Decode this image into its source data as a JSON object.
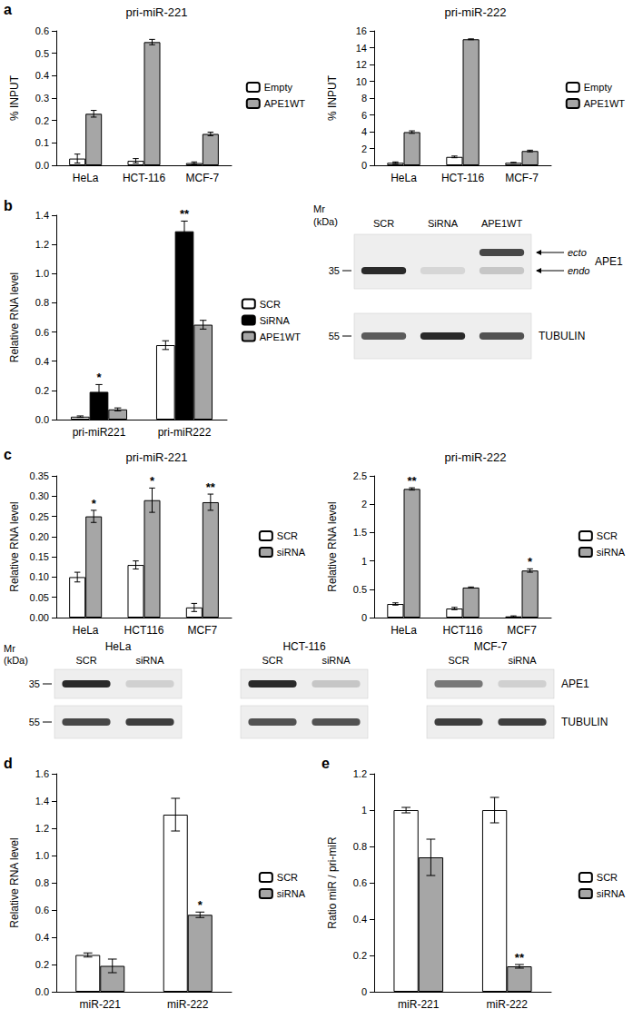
{
  "panel_labels": [
    "a",
    "b",
    "c",
    "d",
    "e"
  ],
  "chart_data": [
    {
      "type": "bar",
      "title": "pri-miR-221",
      "ylabel": "% INPUT",
      "categories": [
        "HeLa",
        "HCT-116",
        "MCF-7"
      ],
      "series": [
        {
          "name": "Empty",
          "color": "#ffffff",
          "values": [
            0.03,
            0.02,
            0.01
          ],
          "errors": [
            0.02,
            0.01,
            0.005
          ]
        },
        {
          "name": "APE1WT",
          "color": "#a6a6a6",
          "values": [
            0.23,
            0.55,
            0.14
          ],
          "errors": [
            0.015,
            0.012,
            0.008
          ]
        }
      ],
      "ylim": [
        0,
        0.6
      ],
      "yticks": [
        {
          "value": 0,
          "label": "0.0"
        },
        0.1,
        0.2,
        0.3,
        0.4,
        0.5,
        0.6
      ],
      "grid": false,
      "legend": "right"
    },
    {
      "type": "bar",
      "title": "pri-miR-222",
      "ylabel": "% INPUT",
      "categories": [
        "HeLa",
        "HCT-116",
        "MCF-7"
      ],
      "series": [
        {
          "name": "Empty",
          "color": "#ffffff",
          "values": [
            0.3,
            1.0,
            0.3
          ],
          "errors": [
            0.1,
            0.1,
            0.05
          ]
        },
        {
          "name": "APE1WT",
          "color": "#a6a6a6",
          "values": [
            3.95,
            15.0,
            1.7
          ],
          "errors": [
            0.15,
            0.05,
            0.1
          ]
        }
      ],
      "ylim": [
        0,
        16
      ],
      "yticks": [
        0,
        2,
        4,
        6,
        8,
        10,
        12,
        14,
        16
      ],
      "grid": false,
      "legend": "right"
    },
    {
      "type": "bar",
      "ylabel": "Relative RNA level",
      "categories": [
        "pri-miR221",
        "pri-miR222"
      ],
      "series": [
        {
          "name": "SCR",
          "color": "#ffffff",
          "values": [
            0.02,
            0.51
          ],
          "errors": [
            0.005,
            0.03
          ],
          "significance": [
            null,
            null
          ]
        },
        {
          "name": "SiRNA",
          "color": "#000000",
          "values": [
            0.19,
            1.29
          ],
          "errors": [
            0.05,
            0.07
          ],
          "significance": [
            "*",
            "**"
          ]
        },
        {
          "name": "APE1WT",
          "color": "#a6a6a6",
          "values": [
            0.07,
            0.65
          ],
          "errors": [
            0.01,
            0.03
          ],
          "significance": [
            null,
            null
          ]
        }
      ],
      "ylim": [
        0,
        1.4
      ],
      "yticks": [
        {
          "value": 0,
          "label": "0.0"
        },
        0.2,
        0.4,
        0.6,
        0.8,
        {
          "value": 1,
          "label": "1.0"
        },
        1.2,
        1.4
      ],
      "grid": false,
      "legend": "right"
    },
    {
      "type": "bar",
      "title": "pri-miR-221",
      "ylabel": "Relative RNA level",
      "categories": [
        "HeLa",
        "HCT116",
        "MCF7"
      ],
      "series": [
        {
          "name": "SCR",
          "color": "#ffffff",
          "values": [
            0.1,
            0.13,
            0.025
          ],
          "errors": [
            0.012,
            0.01,
            0.01
          ],
          "significance": [
            null,
            null,
            null
          ]
        },
        {
          "name": "siRNA",
          "color": "#a6a6a6",
          "values": [
            0.25,
            0.29,
            0.285
          ],
          "errors": [
            0.015,
            0.03,
            0.02
          ],
          "significance": [
            "*",
            "*",
            "**"
          ]
        }
      ],
      "ylim": [
        0,
        0.35
      ],
      "yticks": [
        {
          "value": 0,
          "label": "0.00"
        },
        0.05,
        {
          "value": 0.1,
          "label": "0.10"
        },
        0.15,
        {
          "value": 0.2,
          "label": "0.20"
        },
        0.25,
        {
          "value": 0.3,
          "label": "0.30"
        },
        0.35
      ],
      "grid": false,
      "legend": "right"
    },
    {
      "type": "bar",
      "title": "pri-miR-222",
      "ylabel": "Relative RNA level",
      "categories": [
        "HeLa",
        "HCT116",
        "MCF7"
      ],
      "series": [
        {
          "name": "SCR",
          "color": "#ffffff",
          "values": [
            0.24,
            0.16,
            0.02
          ],
          "errors": [
            0.02,
            0.02,
            0.01
          ],
          "significance": [
            null,
            null,
            null
          ]
        },
        {
          "name": "siRNA",
          "color": "#a6a6a6",
          "values": [
            2.27,
            0.53,
            0.83
          ],
          "errors": [
            0.02,
            0.01,
            0.03
          ],
          "significance": [
            "**",
            null,
            "*"
          ]
        }
      ],
      "ylim": [
        0,
        2.5
      ],
      "yticks": [
        0,
        0.5,
        1,
        1.5,
        2,
        2.5
      ],
      "grid": false,
      "legend": "right"
    },
    {
      "type": "bar",
      "ylabel": "Relative RNA level",
      "categories": [
        "miR-221",
        "miR-222"
      ],
      "series": [
        {
          "name": "SCR",
          "color": "#ffffff",
          "values": [
            0.27,
            1.3
          ],
          "errors": [
            0.015,
            0.12
          ],
          "significance": [
            null,
            null
          ]
        },
        {
          "name": "siRNA",
          "color": "#a6a6a6",
          "values": [
            0.19,
            0.565
          ],
          "errors": [
            0.05,
            0.02
          ],
          "significance": [
            null,
            "*"
          ]
        }
      ],
      "ylim": [
        0,
        1.6
      ],
      "yticks": [
        {
          "value": 0,
          "label": "0.0"
        },
        0.2,
        0.4,
        0.6,
        0.8,
        {
          "value": 1,
          "label": "1.0"
        },
        1.2,
        1.4,
        1.6
      ],
      "grid": false,
      "legend": "right"
    },
    {
      "type": "bar",
      "ylabel": "Ratio miR / pri-miR",
      "categories": [
        "miR-221",
        "miR-222"
      ],
      "series": [
        {
          "name": "SCR",
          "color": "#ffffff",
          "values": [
            1.0,
            1.0
          ],
          "errors": [
            0.015,
            0.07
          ],
          "significance": [
            null,
            null
          ]
        },
        {
          "name": "siRNA",
          "color": "#a6a6a6",
          "values": [
            0.74,
            0.14
          ],
          "errors": [
            0.1,
            0.01
          ],
          "significance": [
            null,
            "**"
          ]
        }
      ],
      "ylim": [
        0,
        1.2
      ],
      "yticks": [
        0,
        0.2,
        0.4,
        0.6,
        0.8,
        1,
        1.2
      ],
      "grid": false,
      "legend": "right"
    }
  ],
  "blots": [
    {
      "mr_label": [
        "Mr",
        "(kDa)"
      ],
      "markers": [
        35,
        55
      ],
      "row_labels": [
        "APE1",
        "TUBULIN"
      ],
      "groups": [
        {
          "lanes": [
            "SCR",
            "SiRNA",
            "APE1WT"
          ],
          "rows": [
            [
              {
                "name": "ecto",
                "intensity": [
                  0,
                  0,
                  0.85
                ]
              },
              {
                "name": "endo",
                "intensity": [
                  1,
                  0.12,
                  0.2
                ]
              }
            ],
            [
              {
                "intensity": [
                  0.75,
                  1,
                  0.8
                ]
              }
            ]
          ]
        }
      ]
    },
    {
      "mr_label": [
        "Mr",
        "(kDa)"
      ],
      "markers": [
        35,
        55
      ],
      "row_labels": [
        "APE1",
        "TUBULIN"
      ],
      "groups": [
        {
          "title": "HeLa",
          "lanes": [
            "SCR",
            "siRNA"
          ],
          "rows": [
            [
              {
                "intensity": [
                  1,
                  0.15
                ]
              }
            ],
            [
              {
                "intensity": [
                  0.85,
                  0.9
                ]
              }
            ]
          ]
        },
        {
          "title": "HCT-116",
          "lanes": [
            "SCR",
            "siRNA"
          ],
          "rows": [
            [
              {
                "intensity": [
                  1,
                  0.2
                ]
              }
            ],
            [
              {
                "intensity": [
                  0.8,
                  0.8
                ]
              }
            ]
          ]
        },
        {
          "title": "MCF-7",
          "lanes": [
            "SCR",
            "siRNA"
          ],
          "rows": [
            [
              {
                "intensity": [
                  0.6,
                  0.15
                ]
              }
            ],
            [
              {
                "intensity": [
                  0.9,
                  0.9
                ]
              }
            ]
          ]
        }
      ]
    }
  ]
}
